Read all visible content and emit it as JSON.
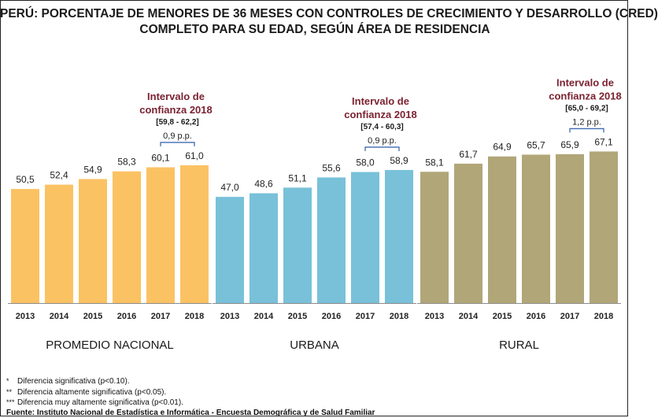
{
  "title": {
    "line1": "PERÚ: PORCENTAJE DE MENORES DE 36 MESES CON CONTROLES DE CRECIMIENTO Y DESARROLLO (CRED)",
    "line2": "COMPLETO PARA SU EDAD, SEGÚN ÁREA DE RESIDENCIA"
  },
  "colors": {
    "nacional": "#fbc263",
    "urbana": "#78c1d9",
    "rural": "#b1a678",
    "annotation": "#7b2231",
    "bracket": "#3f6ab0",
    "axis": "#8c8c8c"
  },
  "chart_data": {
    "type": "bar",
    "ylim": [
      0,
      80
    ],
    "groups": [
      {
        "name": "PROMEDIO NACIONAL",
        "categories": [
          "2013",
          "2014",
          "2015",
          "2016",
          "2017",
          "2018"
        ],
        "values": [
          50.5,
          52.4,
          54.9,
          58.3,
          60.1,
          61.0
        ],
        "value_labels": [
          "50,5",
          "52,4",
          "54,9",
          "58,3",
          "60,1",
          "61,0"
        ],
        "interval_title_1": "Intervalo de",
        "interval_title_2": "confianza 2018",
        "interval_range": "[59,8 - 62,2]",
        "difference_label": "0,9 p.p."
      },
      {
        "name": "URBANA",
        "categories": [
          "2013",
          "2014",
          "2015",
          "2016",
          "2017",
          "2018"
        ],
        "values": [
          47.0,
          48.6,
          51.1,
          55.6,
          58.0,
          58.9
        ],
        "value_labels": [
          "47,0",
          "48,6",
          "51,1",
          "55,6",
          "58,0",
          "58,9"
        ],
        "interval_title_1": "Intervalo de",
        "interval_title_2": "confianza 2018",
        "interval_range": "[57,4 - 60,3]",
        "difference_label": "0,9 p.p."
      },
      {
        "name": "RURAL",
        "categories": [
          "2013",
          "2014",
          "2015",
          "2016",
          "2017",
          "2018"
        ],
        "values": [
          58.1,
          61.7,
          64.9,
          65.7,
          65.9,
          67.1
        ],
        "value_labels": [
          "58,1",
          "61,7",
          "64,9",
          "65,7",
          "65,9",
          "67,1"
        ],
        "interval_title_1": "Intervalo de",
        "interval_title_2": "confianza 2018",
        "interval_range": "[65,0 - 69,2]",
        "difference_label": "1,2 p.p."
      }
    ]
  },
  "footnotes": [
    {
      "mark": "*",
      "text": "Diferencia significativa (p<0.10)."
    },
    {
      "mark": "**",
      "text": "Diferencia altamente significativa (p<0.05)."
    },
    {
      "mark": "***",
      "text": "Diferencia muy altamente significativa (p<0.01)."
    }
  ],
  "source": "Fuente: Instituto Nacional de Estadística e Informática - Encuesta Demográfica y de Salud Familiar"
}
